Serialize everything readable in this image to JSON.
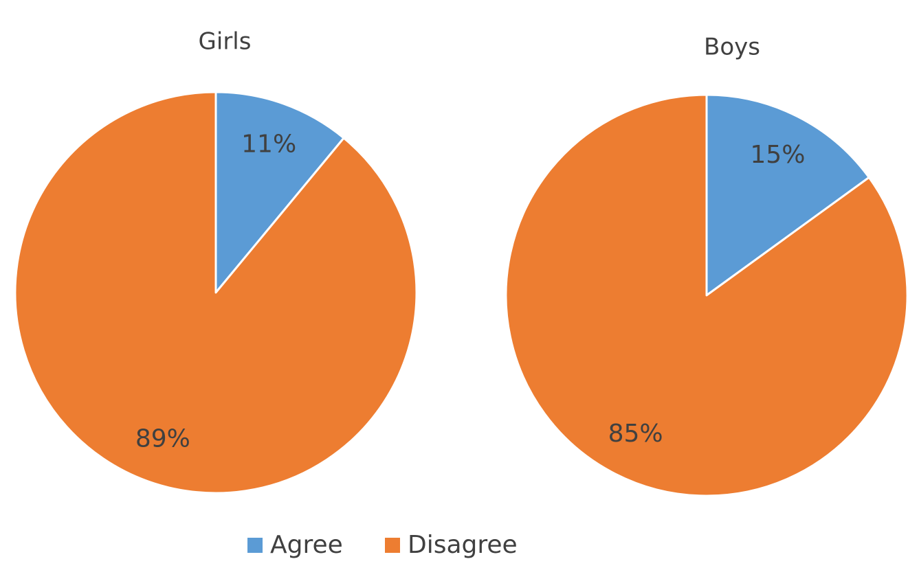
{
  "chart_data": [
    {
      "type": "pie",
      "title": "Girls",
      "categories": [
        "Agree",
        "Disagree"
      ],
      "values": [
        11,
        89
      ],
      "value_labels": [
        "11%",
        "89%"
      ],
      "colors": [
        "#5b9bd5",
        "#ed7d31"
      ],
      "legend": "bottom"
    },
    {
      "type": "pie",
      "title": "Boys",
      "categories": [
        "Agree",
        "Disagree"
      ],
      "values": [
        15,
        85
      ],
      "value_labels": [
        "15%",
        "85%"
      ],
      "colors": [
        "#5b9bd5",
        "#ed7d31"
      ],
      "legend": "bottom"
    }
  ]
}
